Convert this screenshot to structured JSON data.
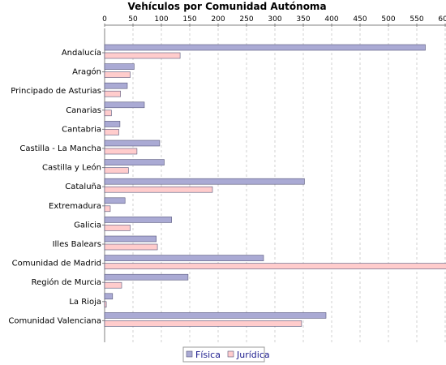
{
  "chart_data": {
    "type": "bar",
    "orientation": "horizontal",
    "title": "Vehículos por Comunidad Autónoma",
    "xlabel": "",
    "ylabel": "",
    "xlim": [
      0,
      760
    ],
    "xticks": [
      0,
      50,
      100,
      150,
      200,
      250,
      300,
      350,
      400,
      450,
      500,
      550,
      600,
      650,
      700,
      750
    ],
    "grid": true,
    "legend_position": "bottom",
    "categories": [
      "Andalucía",
      "Aragón",
      "Principado de Asturias",
      "Canarias",
      "Cantabria",
      "Castilla - La Mancha",
      "Castilla y León",
      "Cataluña",
      "Extremadura",
      "Galicia",
      "Illes Balears",
      "Comunidad de Madrid",
      "Región de Murcia",
      "La Rioja",
      "Comunidad Valenciana"
    ],
    "series": [
      {
        "name": "Física",
        "color": "#aaaad4",
        "values": [
          565,
          52,
          40,
          70,
          27,
          97,
          105,
          352,
          36,
          118,
          91,
          280,
          147,
          14,
          390
        ]
      },
      {
        "name": "Jurídica",
        "color": "#ffcccc",
        "values": [
          133,
          45,
          28,
          12,
          25,
          57,
          42,
          190,
          10,
          45,
          93,
          747,
          30,
          3,
          347
        ]
      }
    ]
  }
}
